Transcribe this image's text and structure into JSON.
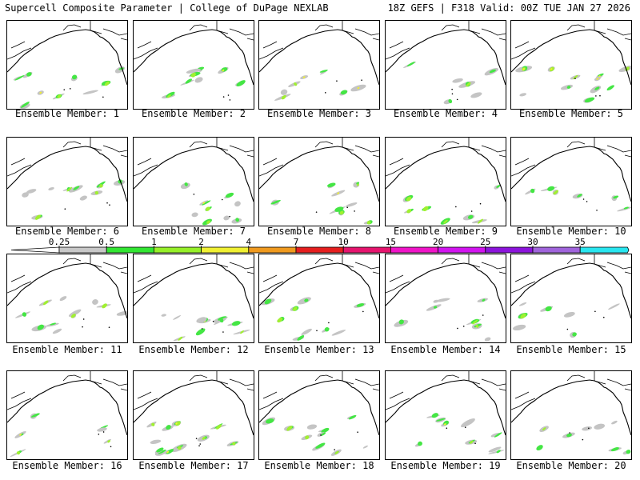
{
  "header": {
    "left": "Supercell Composite Parameter | College of DuPage NEXLAB",
    "right": "18Z GEFS | F318 Valid: 00Z TUE JAN 27 2026"
  },
  "panels": [
    {
      "label": "Ensemble Member: 1"
    },
    {
      "label": "Ensemble Member: 2"
    },
    {
      "label": "Ensemble Member: 3"
    },
    {
      "label": "Ensemble Member: 4"
    },
    {
      "label": "Ensemble Member: 5"
    },
    {
      "label": "Ensemble Member: 6"
    },
    {
      "label": "Ensemble Member: 7"
    },
    {
      "label": "Ensemble Member: 8"
    },
    {
      "label": "Ensemble Member: 9"
    },
    {
      "label": "Ensemble Member: 10"
    },
    {
      "label": "Ensemble Member: 11"
    },
    {
      "label": "Ensemble Member: 12"
    },
    {
      "label": "Ensemble Member: 13"
    },
    {
      "label": "Ensemble Member: 14"
    },
    {
      "label": "Ensemble Member: 15"
    },
    {
      "label": "Ensemble Member: 16"
    },
    {
      "label": "Ensemble Member: 17"
    },
    {
      "label": "Ensemble Member: 18"
    },
    {
      "label": "Ensemble Member: 19"
    },
    {
      "label": "Ensemble Member: 20"
    }
  ],
  "colorbar": {
    "ticks": [
      "0.25",
      "0.5",
      "1",
      "2",
      "4",
      "7",
      "10",
      "15",
      "20",
      "25",
      "30",
      "35"
    ],
    "colors": [
      "#c8c8c8",
      "#32e632",
      "#96f028",
      "#f0f032",
      "#f09a1e",
      "#e61e1e",
      "#e6146e",
      "#f014c8",
      "#d214f0",
      "#8c14dc",
      "#a064dc",
      "#28e6f0"
    ]
  }
}
